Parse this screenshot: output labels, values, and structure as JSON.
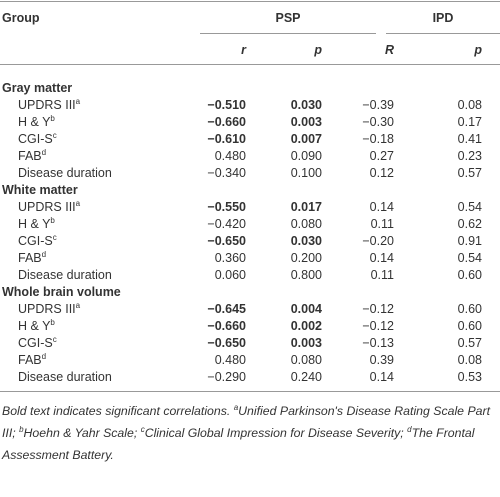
{
  "header": {
    "group": "Group",
    "groups": [
      {
        "label": "PSP",
        "columns": [
          "r",
          "p"
        ]
      },
      {
        "label": "IPD",
        "columns": [
          "R",
          "p"
        ]
      }
    ]
  },
  "sections": [
    {
      "title": "Gray matter",
      "rows": [
        {
          "label": "UPDRS III",
          "sup": "a",
          "cells": [
            "−0.510",
            "0.030",
            "−0.39",
            "0.08"
          ],
          "bold": [
            true,
            true,
            false,
            false
          ]
        },
        {
          "label": "H & Y",
          "sup": "b",
          "cells": [
            "−0.660",
            "0.003",
            "−0.30",
            "0.17"
          ],
          "bold": [
            true,
            true,
            false,
            false
          ]
        },
        {
          "label": "CGI-S",
          "sup": "c",
          "cells": [
            "−0.610",
            "0.007",
            "−0.18",
            "0.41"
          ],
          "bold": [
            true,
            true,
            false,
            false
          ]
        },
        {
          "label": "FAB",
          "sup": "d",
          "cells": [
            "0.480",
            "0.090",
            "0.27",
            "0.23"
          ],
          "bold": [
            false,
            false,
            false,
            false
          ]
        },
        {
          "label": "Disease duration",
          "cells": [
            "−0.340",
            "0.100",
            "0.12",
            "0.57"
          ],
          "bold": [
            false,
            false,
            false,
            false
          ]
        }
      ]
    },
    {
      "title": "White matter",
      "rows": [
        {
          "label": "UPDRS III",
          "sup": "a",
          "cells": [
            "−0.550",
            "0.017",
            "0.14",
            "0.54"
          ],
          "bold": [
            true,
            true,
            false,
            false
          ]
        },
        {
          "label": "H & Y",
          "sup": "b",
          "cells": [
            "−0.420",
            "0.080",
            "0.11",
            "0.62"
          ],
          "bold": [
            false,
            false,
            false,
            false
          ]
        },
        {
          "label": "CGI-S",
          "sup": "c",
          "cells": [
            "−0.650",
            "0.030",
            "−0.20",
            "0.91"
          ],
          "bold": [
            true,
            true,
            false,
            false
          ]
        },
        {
          "label": "FAB",
          "sup": "d",
          "cells": [
            "0.360",
            "0.200",
            "0.14",
            "0.54"
          ],
          "bold": [
            false,
            false,
            false,
            false
          ]
        },
        {
          "label": "Disease duration",
          "cells": [
            "0.060",
            "0.800",
            "0.11",
            "0.60"
          ],
          "bold": [
            false,
            false,
            false,
            false
          ]
        }
      ]
    },
    {
      "title": "Whole brain volume",
      "rows": [
        {
          "label": "UPDRS III",
          "sup": "a",
          "cells": [
            "−0.645",
            "0.004",
            "−0.12",
            "0.60"
          ],
          "bold": [
            true,
            true,
            false,
            false
          ]
        },
        {
          "label": "H & Y",
          "sup": "b",
          "cells": [
            "−0.660",
            "0.002",
            "−0.12",
            "0.60"
          ],
          "bold": [
            true,
            true,
            false,
            false
          ]
        },
        {
          "label": "CGI-S",
          "sup": "c",
          "cells": [
            "−0.650",
            "0.003",
            "−0.13",
            "0.57"
          ],
          "bold": [
            true,
            true,
            false,
            false
          ]
        },
        {
          "label": "FAB",
          "sup": "d",
          "cells": [
            "0.480",
            "0.080",
            "0.39",
            "0.08"
          ],
          "bold": [
            false,
            false,
            false,
            false
          ]
        },
        {
          "label": "Disease duration",
          "cells": [
            "−0.290",
            "0.240",
            "0.14",
            "0.53"
          ],
          "bold": [
            false,
            false,
            false,
            false
          ]
        }
      ]
    }
  ],
  "footnote": {
    "intro": "Bold text indicates significant correlations.",
    "notes": [
      {
        "sup": "a",
        "text": "Unified Parkinson's Disease Rating Scale Part III;"
      },
      {
        "sup": "b",
        "text": "Hoehn & Yahr Scale;"
      },
      {
        "sup": "c",
        "text": "Clinical Global Impression for Disease Severity;"
      },
      {
        "sup": "d",
        "text": "The Frontal Assessment Battery."
      }
    ]
  }
}
